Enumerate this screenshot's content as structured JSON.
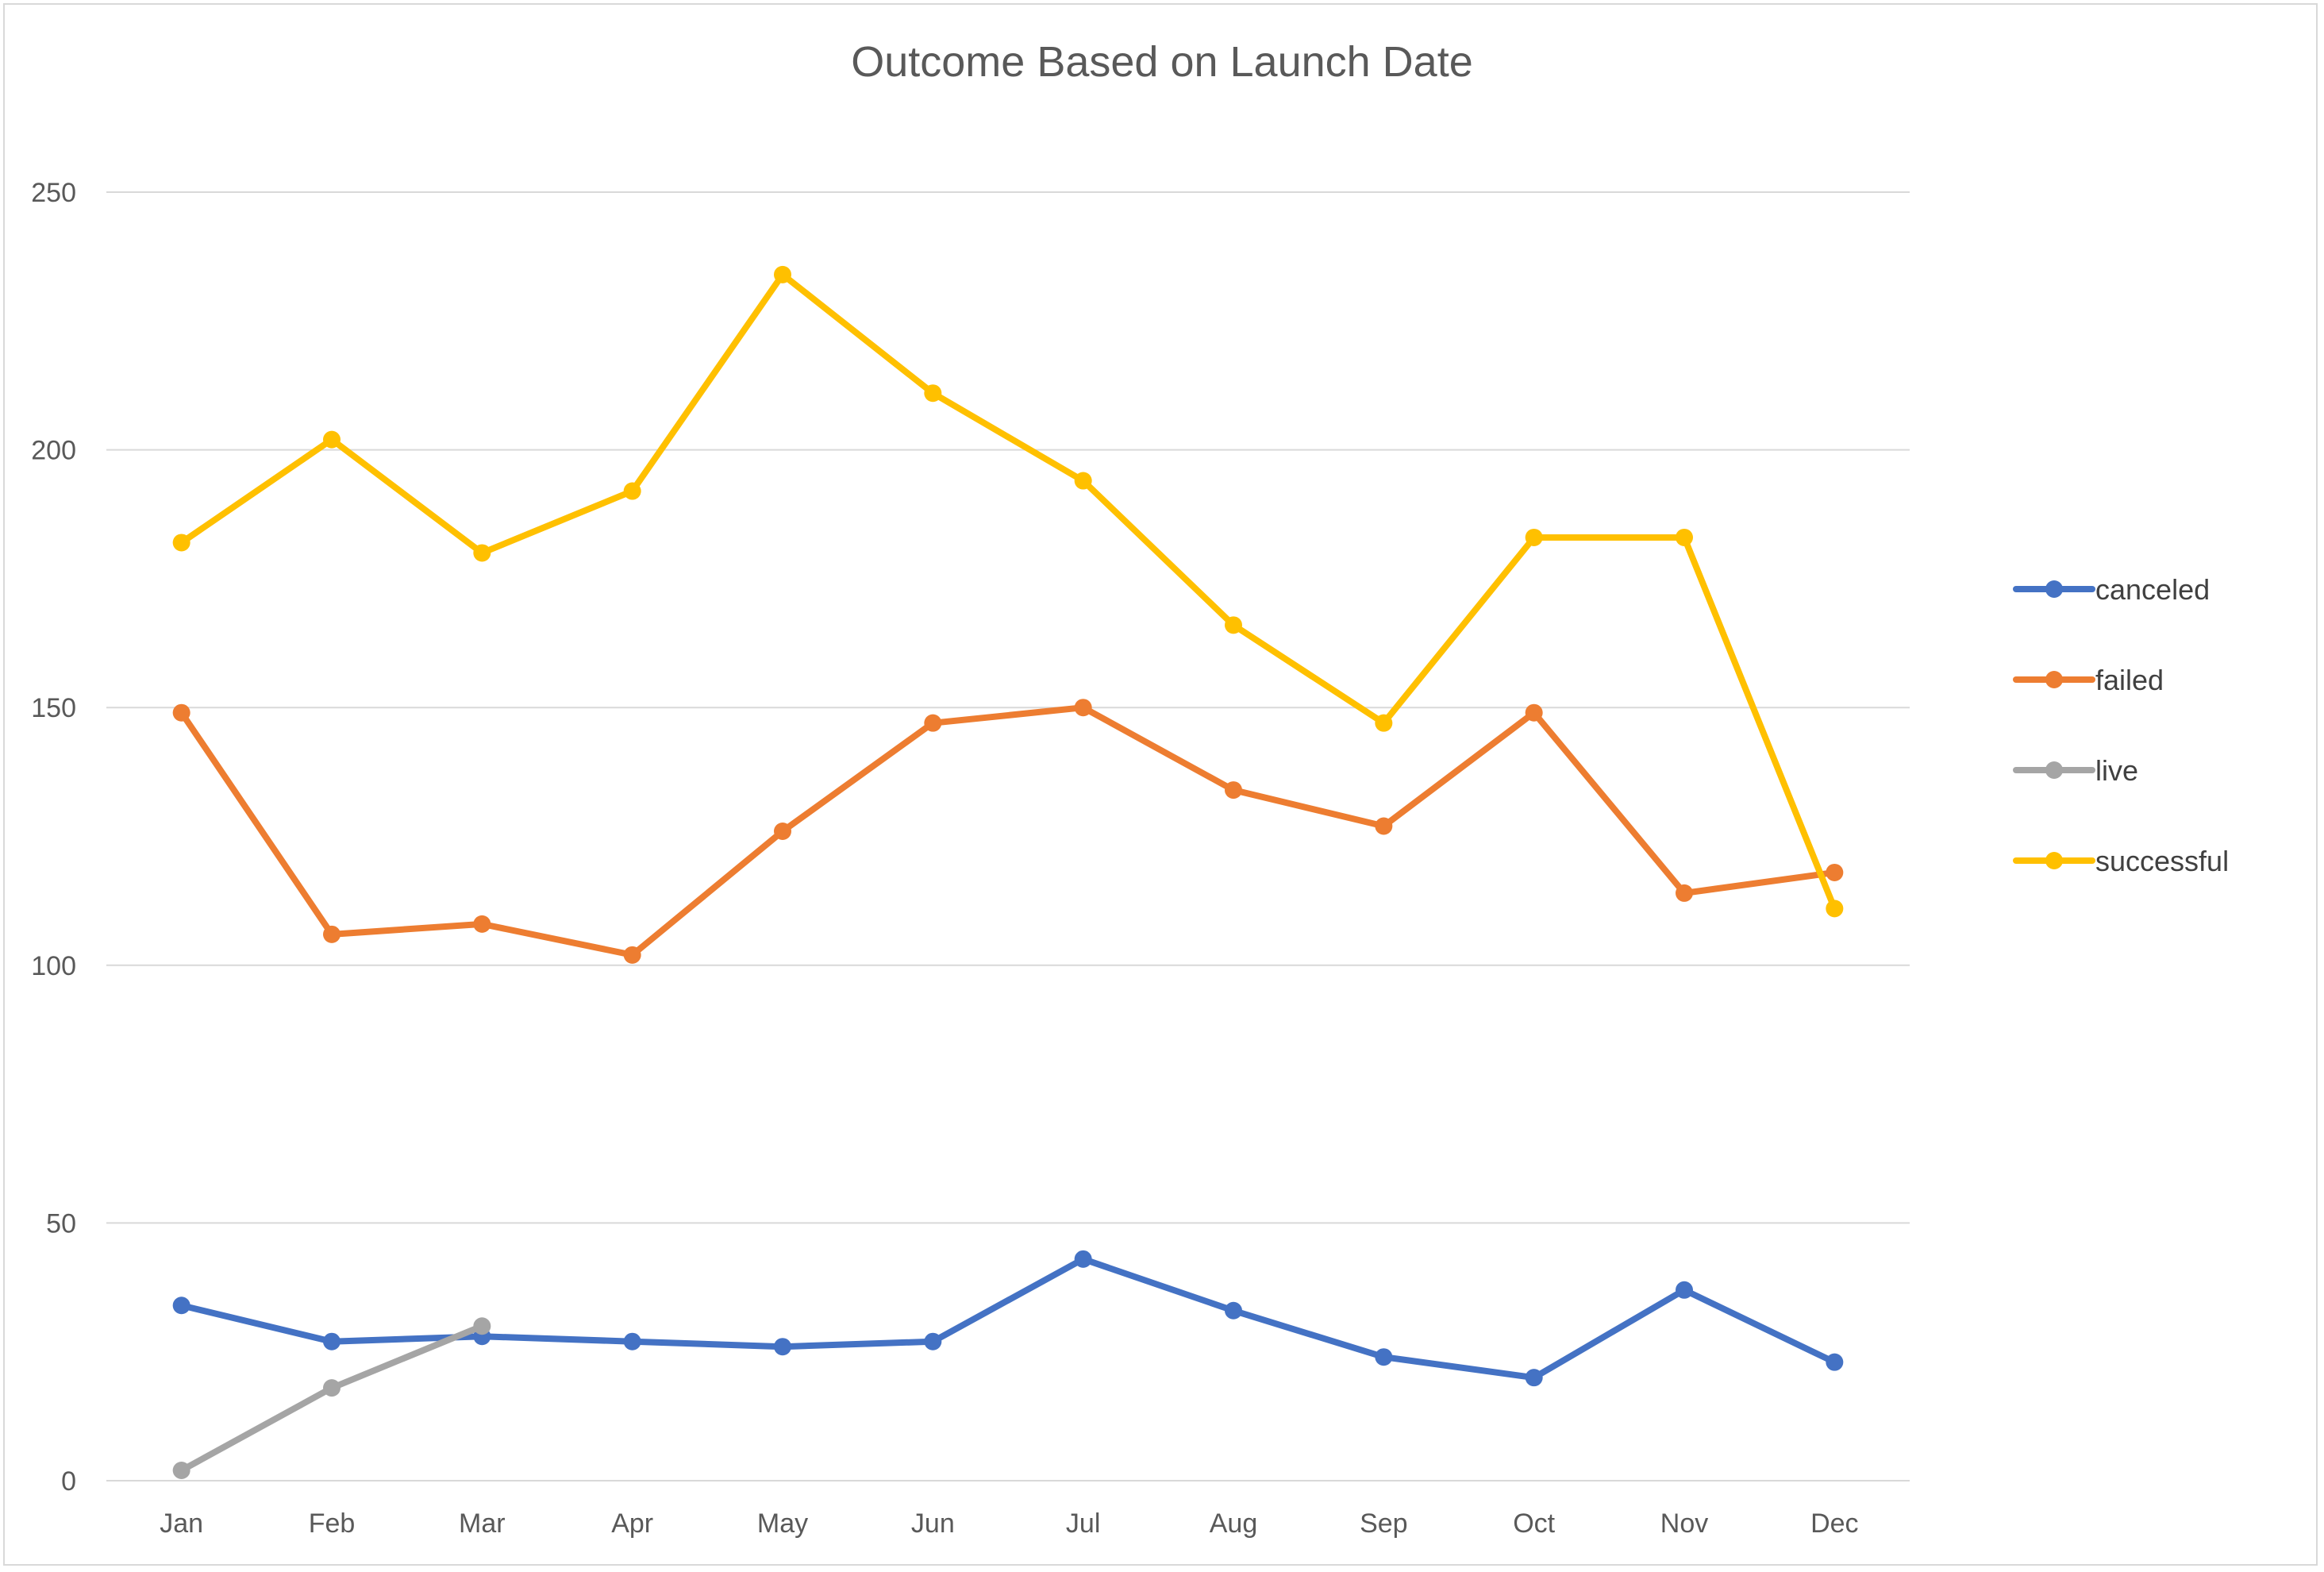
{
  "chart_data": {
    "type": "line",
    "title": "Outcome Based on Launch Date",
    "xlabel": "",
    "ylabel": "",
    "categories": [
      "Jan",
      "Feb",
      "Mar",
      "Apr",
      "May",
      "Jun",
      "Jul",
      "Aug",
      "Sep",
      "Oct",
      "Nov",
      "Dec"
    ],
    "ylim": [
      0,
      250
    ],
    "yticks": [
      0,
      50,
      100,
      150,
      200,
      250
    ],
    "grid": true,
    "legend_position": "right",
    "series": [
      {
        "name": "canceled",
        "color": "#4472C4",
        "values": [
          34,
          27,
          28,
          27,
          26,
          27,
          43,
          33,
          24,
          20,
          37,
          23
        ]
      },
      {
        "name": "failed",
        "color": "#ED7D31",
        "values": [
          149,
          106,
          108,
          102,
          126,
          147,
          150,
          134,
          127,
          149,
          114,
          118
        ]
      },
      {
        "name": "live",
        "color": "#A5A5A5",
        "values": [
          2,
          18,
          30,
          null,
          null,
          null,
          null,
          null,
          null,
          null,
          null,
          null
        ]
      },
      {
        "name": "successful",
        "color": "#FFC000",
        "values": [
          182,
          202,
          180,
          192,
          234,
          211,
          194,
          166,
          147,
          183,
          183,
          111
        ]
      }
    ]
  }
}
